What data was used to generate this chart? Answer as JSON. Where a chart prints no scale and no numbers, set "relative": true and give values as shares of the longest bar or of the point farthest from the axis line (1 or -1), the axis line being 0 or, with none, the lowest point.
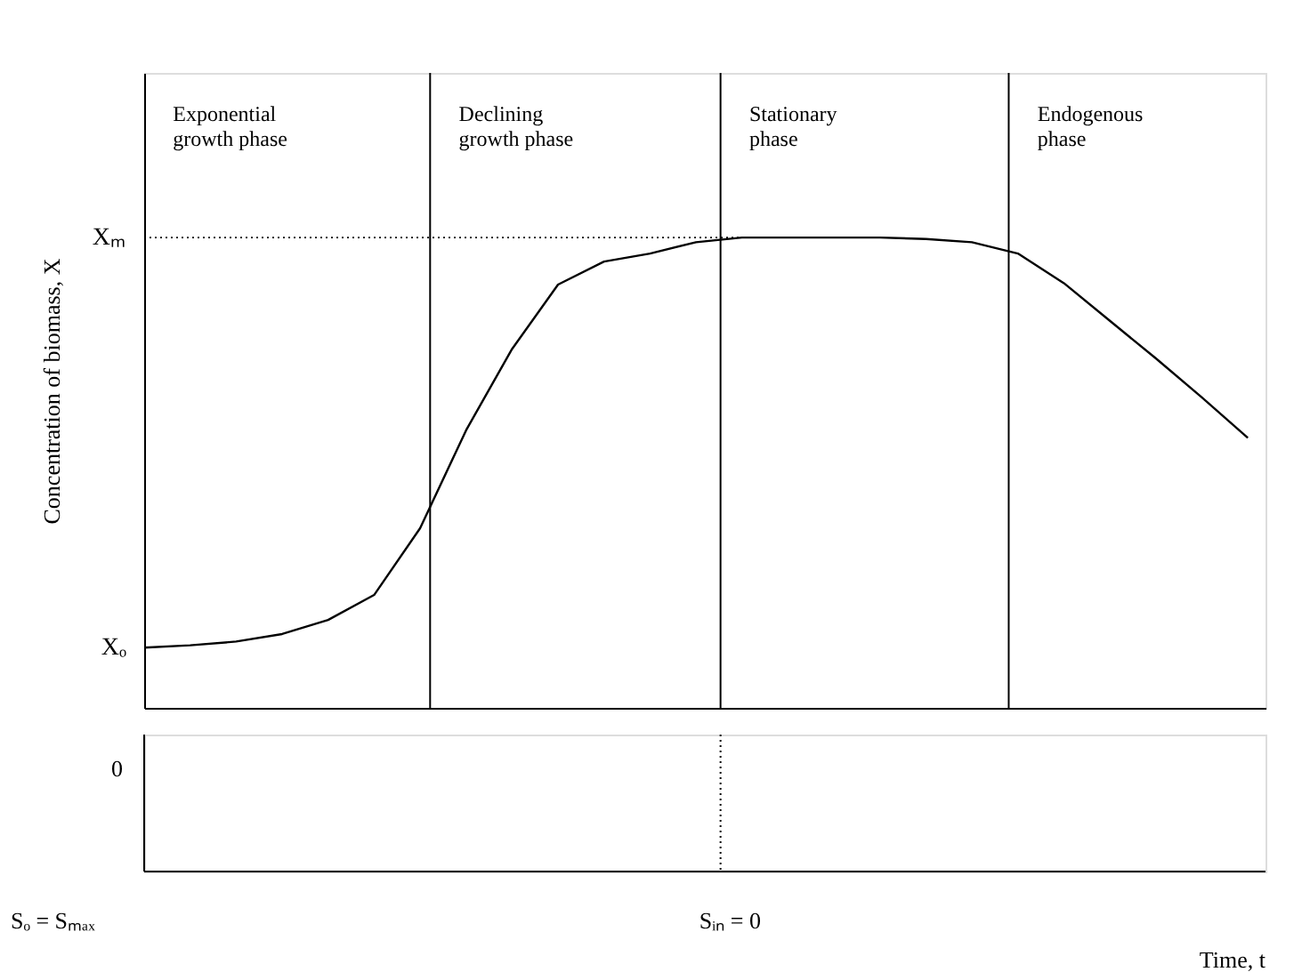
{
  "chart_data": {
    "type": "line",
    "relative": true,
    "ylabel": "Concentration of biomass, X",
    "categories": [
      null,
      null,
      null,
      null,
      null,
      null,
      null,
      null,
      null,
      null,
      null,
      null,
      null,
      null,
      null,
      null,
      null,
      null,
      null,
      null,
      null,
      null,
      null,
      null,
      null
    ],
    "series": [
      {
        "color": "#000000",
        "values": [
          0.128,
          0.133,
          0.141,
          0.157,
          0.187,
          0.24,
          0.382,
          0.59,
          0.763,
          0.9,
          0.949,
          0.966,
          0.99,
          1,
          1,
          1,
          1,
          0.997,
          0.99,
          0.966,
          0.903,
          0.823,
          0.743,
          0.66,
          0.574
        ]
      }
    ],
    "ref_lines": [
      {
        "axis": "y",
        "value": 1,
        "label": "Xₘ",
        "line_style": "dotted"
      }
    ],
    "annotations": [
      "Exponential\ngrowth phase",
      "Declining\ngrowth phase",
      "Stationary\nphase",
      "Endogenous\nphase",
      "Xₒ",
      "0",
      "Sₒ = Sₘₐₓ",
      "Sᵢₙ = 0",
      "Time, t"
    ],
    "grid": false,
    "legend": false,
    "marker": "none",
    "line_style": "solid"
  }
}
